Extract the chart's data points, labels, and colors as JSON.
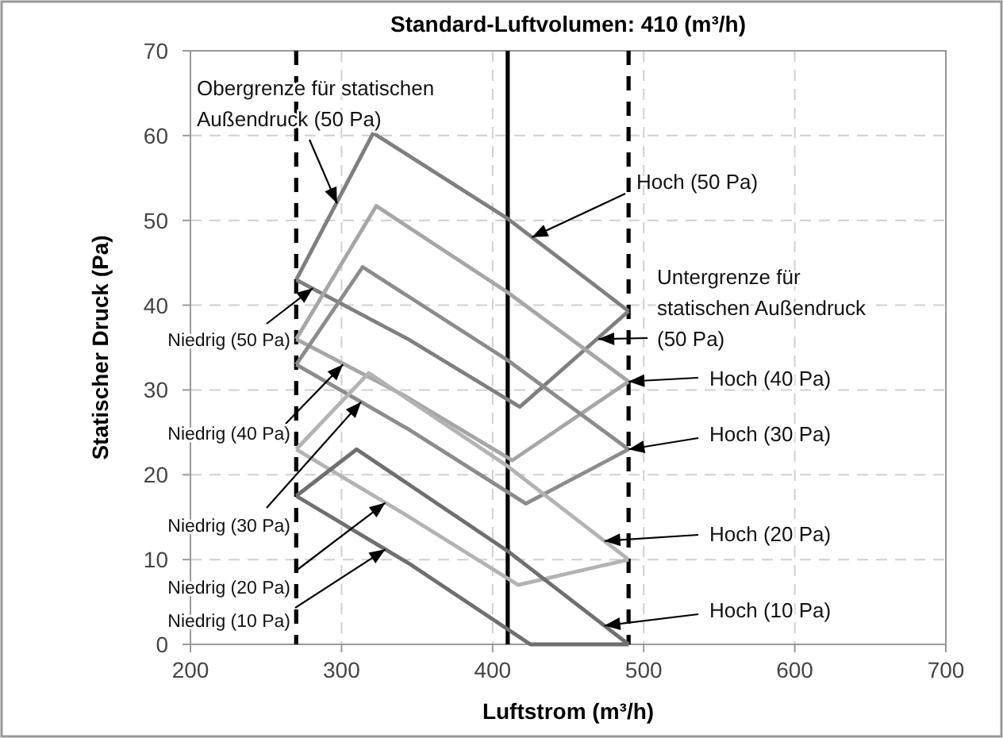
{
  "chart_data": {
    "type": "line",
    "title": "Standard-Luftvolumen: 410 (m³/h)",
    "xlabel": "Luftstrom (m³/h)",
    "ylabel": "Statischer Druck (Pa)",
    "xlim": [
      200,
      700
    ],
    "xticks": [
      200,
      300,
      400,
      500,
      600,
      700
    ],
    "ylim": [
      0,
      70
    ],
    "yticks": [
      0,
      10,
      20,
      30,
      40,
      50,
      60,
      70
    ],
    "grid": true,
    "line_style": "solid",
    "series": [
      {
        "color": "#7f7f7f",
        "x": [
          270,
          321,
          410,
          490
        ],
        "values": [
          43,
          60.3,
          50.2,
          39.3
        ]
      },
      {
        "color": "#7f7f7f",
        "x": [
          270,
          344,
          418,
          490
        ],
        "values": [
          43,
          36,
          28,
          39.3
        ]
      },
      {
        "color": "#a6a6a6",
        "x": [
          270,
          323,
          410,
          490
        ],
        "values": [
          36,
          51.7,
          41.5,
          31
        ]
      },
      {
        "color": "#a6a6a6",
        "x": [
          270,
          340,
          413,
          490
        ],
        "values": [
          36,
          29.5,
          21.7,
          31
        ]
      },
      {
        "color": "#8c8c8c",
        "x": [
          270,
          314,
          410,
          490
        ],
        "values": [
          33,
          44.5,
          33.5,
          23
        ]
      },
      {
        "color": "#8c8c8c",
        "x": [
          270,
          345,
          422,
          490
        ],
        "values": [
          33,
          25.3,
          16.6,
          23
        ]
      },
      {
        "color": "#b3b3b3",
        "x": [
          270,
          318,
          410,
          490
        ],
        "values": [
          23,
          32,
          21,
          10
        ]
      },
      {
        "color": "#b3b3b3",
        "x": [
          270,
          345,
          417,
          490
        ],
        "values": [
          23,
          15,
          7,
          10
        ]
      },
      {
        "color": "#6f6f6f",
        "x": [
          270,
          310,
          410,
          490
        ],
        "values": [
          17.5,
          23,
          11,
          0
        ]
      },
      {
        "color": "#6f6f6f",
        "x": [
          270,
          345,
          425,
          490
        ],
        "values": [
          17.5,
          9.5,
          0,
          0
        ]
      }
    ],
    "ref_lines": [
      {
        "axis": "x",
        "value": 270,
        "color": "#000000",
        "line_style": "dashed"
      },
      {
        "axis": "x",
        "value": 410,
        "color": "#000000",
        "line_style": "solid"
      },
      {
        "axis": "x",
        "value": 490,
        "color": "#000000",
        "line_style": "dashed"
      }
    ],
    "annotations": [
      {
        "text": "Obergrenze für statischen\nAußendruck (50 Pa)",
        "x": 297,
        "y": 52
      },
      {
        "text": "Hoch (50 Pa)",
        "x": 426,
        "y": 48
      },
      {
        "text": "Untergrenze für\nstatischen Außendruck\n(50 Pa)",
        "x": 470,
        "y": 36
      },
      {
        "text": "Hoch (40 Pa)",
        "x": 490,
        "y": 31
      },
      {
        "text": "Hoch (30 Pa)",
        "x": 490,
        "y": 23
      },
      {
        "text": "Hoch (20 Pa)",
        "x": 474,
        "y": 12.2
      },
      {
        "text": "Hoch (10 Pa)",
        "x": 474,
        "y": 2.2
      },
      {
        "text": "Niedrig (50 Pa)",
        "x": 281,
        "y": 42
      },
      {
        "text": "Niedrig (40 Pa)",
        "x": 301,
        "y": 33
      },
      {
        "text": "Niedrig (30 Pa)",
        "x": 313,
        "y": 28.6
      },
      {
        "text": "Niedrig (20 Pa)",
        "x": 329,
        "y": 16.7
      },
      {
        "text": "Niedrig (10 Pa)",
        "x": 329,
        "y": 11.2
      }
    ]
  }
}
